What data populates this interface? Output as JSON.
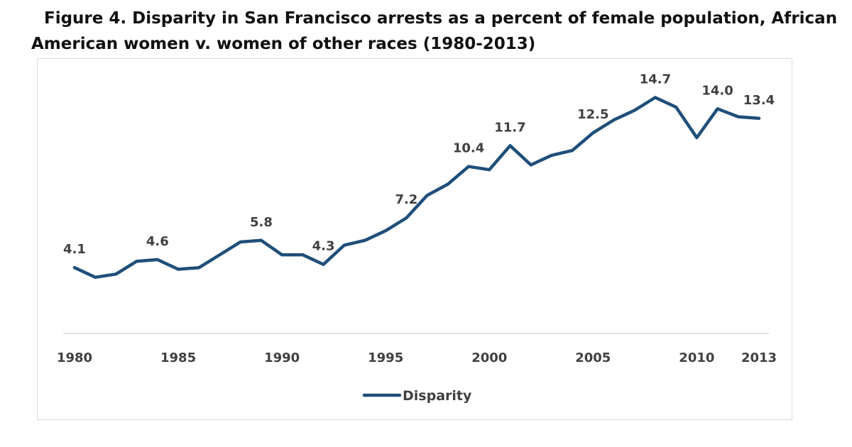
{
  "chart_data": {
    "type": "line",
    "title_line1": "Figure 4. Disparity in San Francisco arrests as a percent of female population, African",
    "title_line2": "American women v. women of other races (1980-2013)",
    "xlabel": "",
    "ylabel": "",
    "x": [
      1980,
      1981,
      1982,
      1983,
      1984,
      1985,
      1986,
      1987,
      1988,
      1989,
      1990,
      1991,
      1992,
      1993,
      1994,
      1995,
      1996,
      1997,
      1998,
      1999,
      2000,
      2001,
      2002,
      2003,
      2004,
      2005,
      2006,
      2007,
      2008,
      2009,
      2010,
      2011,
      2012,
      2013
    ],
    "series": [
      {
        "name": "Disparity",
        "color": "#1f4e79",
        "values": [
          4.1,
          3.5,
          3.7,
          4.5,
          4.6,
          4.0,
          4.1,
          4.9,
          5.7,
          5.8,
          4.9,
          4.9,
          4.3,
          5.5,
          5.8,
          6.4,
          7.2,
          8.6,
          9.3,
          10.4,
          10.2,
          11.7,
          10.5,
          11.1,
          11.4,
          12.5,
          13.3,
          13.9,
          14.7,
          14.1,
          12.2,
          14.0,
          13.5,
          13.4
        ]
      }
    ],
    "data_labels": [
      {
        "x": 1980,
        "value": 4.1,
        "text": "4.1"
      },
      {
        "x": 1984,
        "value": 4.6,
        "text": "4.6"
      },
      {
        "x": 1989,
        "value": 5.8,
        "text": "5.8"
      },
      {
        "x": 1992,
        "value": 4.3,
        "text": "4.3"
      },
      {
        "x": 1996,
        "value": 7.2,
        "text": "7.2"
      },
      {
        "x": 1999,
        "value": 10.4,
        "text": "10.4"
      },
      {
        "x": 2001,
        "value": 11.7,
        "text": "11.7"
      },
      {
        "x": 2005,
        "value": 12.5,
        "text": "12.5"
      },
      {
        "x": 2008,
        "value": 14.7,
        "text": "14.7"
      },
      {
        "x": 2011,
        "value": 14.0,
        "text": "14.0"
      },
      {
        "x": 2013,
        "value": 13.4,
        "text": "13.4"
      }
    ],
    "x_ticks": [
      {
        "value": 1980,
        "label": "1980"
      },
      {
        "value": 1985,
        "label": "1985"
      },
      {
        "value": 1990,
        "label": "1990"
      },
      {
        "value": 1995,
        "label": "1995"
      },
      {
        "value": 2000,
        "label": "2000"
      },
      {
        "value": 2005,
        "label": "2005"
      },
      {
        "value": 2010,
        "label": "2010"
      },
      {
        "value": 2013,
        "label": "2013"
      }
    ],
    "xlim": [
      1980,
      2013
    ],
    "ylim": [
      0,
      16
    ],
    "grid": false,
    "legend": {
      "position": "bottom-left",
      "entries": [
        "Disparity"
      ]
    }
  }
}
